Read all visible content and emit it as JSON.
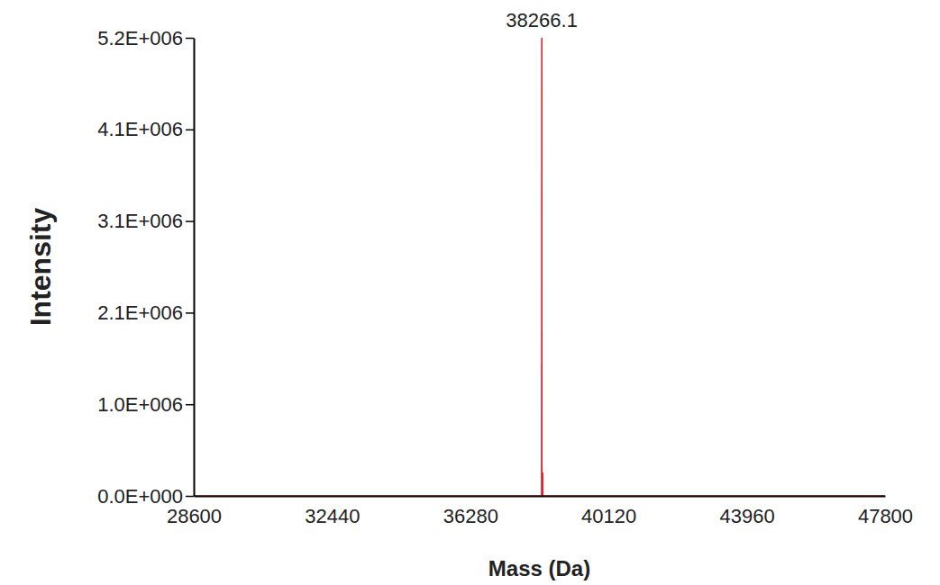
{
  "chart_data": {
    "type": "line",
    "x_label": "Mass (Da)",
    "y_label": "Intensity",
    "x": [
      28600,
      38240,
      38262,
      38263,
      38264,
      38266.1,
      38268,
      38290,
      38291,
      38292,
      38320,
      47800
    ],
    "values": [
      0,
      0,
      0,
      1480000,
      0,
      5150000,
      0,
      0,
      263000,
      0,
      0,
      0
    ],
    "color": "#e3141c",
    "xlim": [
      28600,
      47800
    ],
    "xticks": [
      28600,
      32440,
      36280,
      40120,
      43960,
      47800
    ],
    "ylim": [
      0,
      5150000
    ],
    "yticks": [
      {
        "value": 0,
        "label": "0.0E+000"
      },
      {
        "value": 1030000,
        "label": "1.0E+006"
      },
      {
        "value": 2060000,
        "label": "2.1E+006"
      },
      {
        "value": 3090000,
        "label": "3.1E+006"
      },
      {
        "value": 4120000,
        "label": "4.1E+006"
      },
      {
        "value": 5150000,
        "label": "5.2E+006"
      }
    ],
    "annotations": [
      {
        "x": 38266.1,
        "text": "38266.1"
      }
    ],
    "grid": false
  }
}
